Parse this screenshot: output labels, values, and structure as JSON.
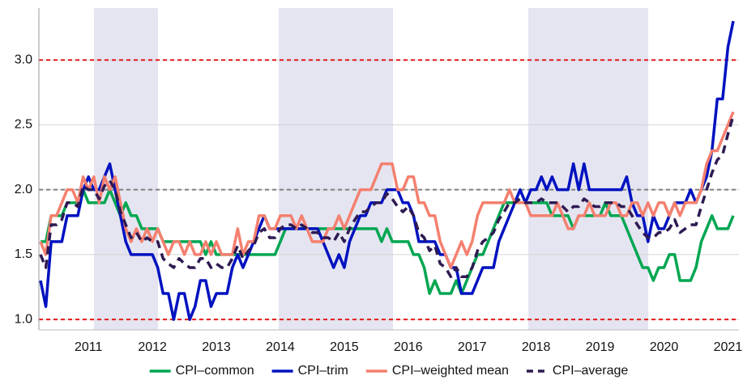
{
  "chart_data": {
    "type": "line",
    "categories": [
      null,
      null,
      null,
      null,
      null,
      null,
      null,
      null,
      null,
      "2011",
      null,
      null,
      null,
      null,
      null,
      null,
      null,
      null,
      null,
      null,
      null,
      "2012",
      null,
      null,
      null,
      null,
      null,
      null,
      null,
      null,
      null,
      null,
      null,
      "2013",
      null,
      null,
      null,
      null,
      null,
      null,
      null,
      null,
      null,
      null,
      null,
      "2014",
      null,
      null,
      null,
      null,
      null,
      null,
      null,
      null,
      null,
      null,
      null,
      "2015",
      null,
      null,
      null,
      null,
      null,
      null,
      null,
      null,
      null,
      null,
      null,
      "2016",
      null,
      null,
      null,
      null,
      null,
      null,
      null,
      null,
      null,
      null,
      null,
      "2017",
      null,
      null,
      null,
      null,
      null,
      null,
      null,
      null,
      null,
      null,
      null,
      "2018",
      null,
      null,
      null,
      null,
      null,
      null,
      null,
      null,
      null,
      null,
      null,
      "2019",
      null,
      null,
      null,
      null,
      null,
      null,
      null,
      null,
      null,
      null,
      null,
      "2020",
      null,
      null,
      null,
      null,
      null,
      null,
      null,
      null,
      null,
      null,
      null,
      "2021",
      null
    ],
    "series": [
      {
        "name": "CPI–common",
        "color": "#00a651",
        "values": [
          1.6,
          1.6,
          1.8,
          1.8,
          1.8,
          1.9,
          1.9,
          1.9,
          2.0,
          1.9,
          1.9,
          1.9,
          1.9,
          2.0,
          1.9,
          1.8,
          1.9,
          1.8,
          1.8,
          1.7,
          1.7,
          1.7,
          1.7,
          1.6,
          1.6,
          1.6,
          1.6,
          1.6,
          1.6,
          1.6,
          1.6,
          1.5,
          1.6,
          1.5,
          1.5,
          1.5,
          1.5,
          1.5,
          1.5,
          1.5,
          1.5,
          1.5,
          1.5,
          1.5,
          1.5,
          1.6,
          1.7,
          1.7,
          1.7,
          1.7,
          1.7,
          1.7,
          1.7,
          1.7,
          1.7,
          1.7,
          1.7,
          1.7,
          1.7,
          1.7,
          1.7,
          1.7,
          1.7,
          1.7,
          1.6,
          1.7,
          1.6,
          1.6,
          1.6,
          1.6,
          1.5,
          1.5,
          1.4,
          1.2,
          1.3,
          1.2,
          1.2,
          1.2,
          1.3,
          1.2,
          1.3,
          1.4,
          1.5,
          1.5,
          1.6,
          1.7,
          1.8,
          1.9,
          1.9,
          1.9,
          1.9,
          1.9,
          1.9,
          1.9,
          1.9,
          1.9,
          1.8,
          1.8,
          1.8,
          1.8,
          1.7,
          1.8,
          1.8,
          1.8,
          1.8,
          1.8,
          1.9,
          1.8,
          1.8,
          1.8,
          1.7,
          1.6,
          1.5,
          1.4,
          1.4,
          1.3,
          1.4,
          1.4,
          1.5,
          1.5,
          1.3,
          1.3,
          1.3,
          1.4,
          1.6,
          1.7,
          1.8,
          1.7,
          1.7,
          1.7,
          1.8
        ]
      },
      {
        "name": "CPI–trim",
        "color": "#0012c0",
        "values": [
          1.3,
          1.1,
          1.6,
          1.6,
          1.6,
          1.8,
          1.8,
          1.8,
          2.0,
          2.1,
          2.0,
          2.0,
          2.1,
          2.2,
          2.0,
          1.8,
          1.6,
          1.5,
          1.5,
          1.5,
          1.5,
          1.5,
          1.4,
          1.2,
          1.2,
          1.0,
          1.2,
          1.2,
          1.0,
          1.1,
          1.3,
          1.3,
          1.1,
          1.2,
          1.2,
          1.2,
          1.4,
          1.5,
          1.4,
          1.5,
          1.6,
          1.7,
          1.8,
          1.7,
          1.7,
          1.7,
          1.7,
          1.7,
          1.7,
          1.7,
          1.7,
          1.7,
          1.7,
          1.6,
          1.5,
          1.4,
          1.5,
          1.4,
          1.6,
          1.7,
          1.8,
          1.8,
          1.9,
          1.9,
          1.9,
          2.0,
          2.0,
          2.0,
          1.9,
          1.9,
          1.8,
          1.6,
          1.6,
          1.6,
          1.6,
          1.5,
          1.5,
          1.4,
          1.4,
          1.2,
          1.2,
          1.2,
          1.3,
          1.4,
          1.4,
          1.4,
          1.6,
          1.7,
          1.8,
          1.9,
          2.0,
          1.9,
          2.0,
          2.0,
          2.1,
          2.0,
          2.1,
          2.0,
          2.0,
          2.0,
          2.2,
          2.0,
          2.2,
          2.0,
          2.0,
          2.0,
          2.0,
          2.0,
          2.0,
          2.0,
          2.1,
          1.9,
          1.8,
          1.8,
          1.6,
          1.8,
          1.7,
          1.7,
          1.8,
          1.9,
          1.9,
          1.9,
          2.0,
          1.9,
          2.0,
          2.1,
          2.3,
          2.7,
          2.7,
          3.1,
          3.3
        ]
      },
      {
        "name": "CPI–weighted mean",
        "color": "#f4806f",
        "values": [
          1.6,
          1.5,
          1.8,
          1.8,
          1.9,
          2.0,
          2.0,
          1.9,
          2.1,
          2.0,
          2.1,
          1.9,
          2.1,
          2.0,
          2.1,
          1.9,
          1.7,
          1.6,
          1.7,
          1.6,
          1.7,
          1.6,
          1.7,
          1.6,
          1.5,
          1.6,
          1.6,
          1.5,
          1.6,
          1.5,
          1.5,
          1.6,
          1.5,
          1.6,
          1.5,
          1.5,
          1.5,
          1.7,
          1.5,
          1.6,
          1.6,
          1.8,
          1.8,
          1.7,
          1.7,
          1.8,
          1.8,
          1.8,
          1.7,
          1.8,
          1.7,
          1.6,
          1.6,
          1.6,
          1.7,
          1.7,
          1.8,
          1.7,
          1.8,
          1.9,
          2.0,
          2.0,
          2.0,
          2.1,
          2.2,
          2.2,
          2.2,
          2.0,
          2.0,
          2.1,
          2.1,
          1.9,
          1.9,
          1.8,
          1.8,
          1.6,
          1.5,
          1.4,
          1.5,
          1.6,
          1.5,
          1.6,
          1.8,
          1.9,
          1.9,
          1.9,
          1.9,
          1.9,
          2.0,
          1.9,
          1.9,
          1.9,
          1.8,
          1.8,
          1.8,
          1.8,
          1.8,
          1.9,
          1.8,
          1.7,
          1.7,
          1.8,
          1.8,
          1.9,
          1.8,
          1.8,
          1.8,
          1.9,
          1.9,
          1.8,
          1.8,
          1.9,
          1.9,
          1.8,
          1.9,
          1.8,
          1.9,
          1.9,
          1.8,
          1.9,
          1.8,
          1.9,
          1.9,
          1.9,
          2.0,
          2.2,
          2.3,
          2.3,
          2.4,
          2.5,
          2.6
        ]
      },
      {
        "name": "CPI–average",
        "color": "#2e1a52",
        "style": "dashed",
        "values": [
          1.5,
          1.4,
          1.73,
          1.73,
          1.77,
          1.9,
          1.9,
          1.87,
          2.03,
          2.0,
          2.0,
          1.93,
          2.03,
          2.07,
          2.0,
          1.83,
          1.73,
          1.63,
          1.67,
          1.6,
          1.63,
          1.6,
          1.6,
          1.47,
          1.43,
          1.4,
          1.47,
          1.43,
          1.4,
          1.4,
          1.47,
          1.47,
          1.4,
          1.43,
          1.4,
          1.4,
          1.47,
          1.57,
          1.47,
          1.53,
          1.57,
          1.67,
          1.7,
          1.63,
          1.63,
          1.7,
          1.73,
          1.73,
          1.7,
          1.73,
          1.7,
          1.67,
          1.67,
          1.63,
          1.63,
          1.6,
          1.67,
          1.6,
          1.7,
          1.77,
          1.83,
          1.83,
          1.87,
          1.9,
          1.9,
          1.97,
          1.93,
          1.87,
          1.83,
          1.87,
          1.8,
          1.67,
          1.63,
          1.53,
          1.57,
          1.43,
          1.4,
          1.33,
          1.4,
          1.33,
          1.33,
          1.4,
          1.53,
          1.6,
          1.63,
          1.67,
          1.77,
          1.83,
          1.9,
          1.9,
          1.93,
          1.9,
          1.9,
          1.9,
          1.93,
          1.9,
          1.9,
          1.9,
          1.87,
          1.83,
          1.87,
          1.87,
          1.93,
          1.9,
          1.87,
          1.87,
          1.9,
          1.9,
          1.9,
          1.87,
          1.87,
          1.8,
          1.73,
          1.67,
          1.63,
          1.63,
          1.67,
          1.67,
          1.7,
          1.77,
          1.67,
          1.7,
          1.73,
          1.73,
          1.87,
          2.0,
          2.13,
          2.23,
          2.27,
          2.43,
          2.57
        ]
      }
    ],
    "ylim": [
      0.92,
      3.4
    ],
    "yticks": [
      {
        "value": 1,
        "label": "1.0"
      },
      {
        "value": 1.5,
        "label": "1.5"
      },
      {
        "value": 2,
        "label": "2.0"
      },
      {
        "value": 2.5,
        "label": "2.5"
      },
      {
        "value": 3,
        "label": "3.0"
      }
    ],
    "reference_lines": [
      {
        "value": 3,
        "color": "#e41a1c"
      },
      {
        "value": 2,
        "color": "#7f7f7f"
      },
      {
        "value": 1,
        "color": "#e41a1c"
      }
    ],
    "grid": true,
    "legend": "bottom"
  }
}
